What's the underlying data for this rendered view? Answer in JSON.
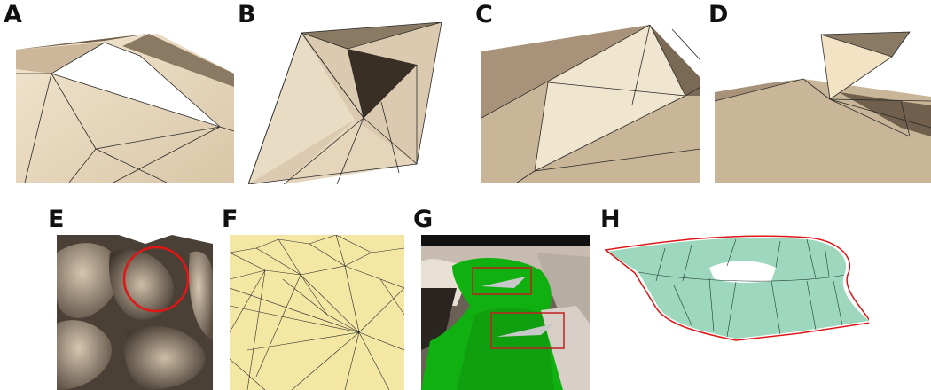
{
  "labels": [
    "A",
    "B",
    "C",
    "D",
    "E",
    "F",
    "G",
    "H"
  ],
  "colors": {
    "mesh_light": "#efe1c7",
    "mesh_mid": "#cdb79b",
    "mesh_dark": "#6f5f4c",
    "edge": "#2b2b2b",
    "yellow_surface": "#f4e7a4",
    "green_surface": "#10b010",
    "teal_surface": "#9dd7bd",
    "highlight_red": "#e01515",
    "box_red": "#c02020"
  }
}
